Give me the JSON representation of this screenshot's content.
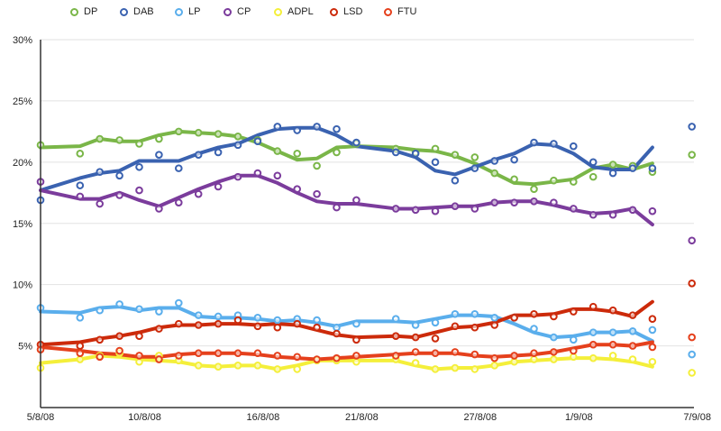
{
  "chart_data": {
    "type": "line",
    "title": "",
    "xlabel": "",
    "ylabel": "",
    "ylim": [
      0,
      30
    ],
    "y_ticks": [
      "5%",
      "10%",
      "15%",
      "20%",
      "25%",
      "30%"
    ],
    "y_tick_values": [
      5,
      10,
      15,
      20,
      25,
      30
    ],
    "x_ticks": [
      "5/8/08",
      "10/8/08",
      "16/8/08",
      "21/8/08",
      "27/8/08",
      "1/9/08",
      "7/9/08"
    ],
    "grid": true,
    "legend_position": "top",
    "marker_dates": [
      "5/8/08",
      "7/8/08",
      "8/8/08",
      "9/8/08",
      "10/8/08",
      "11/8/08",
      "12/8/08",
      "13/8/08",
      "14/8/08",
      "15/8/08",
      "16/8/08",
      "17/8/08",
      "18/8/08",
      "19/8/08",
      "20/8/08",
      "21/8/08",
      "23/8/08",
      "24/8/08",
      "25/8/08",
      "26/8/08",
      "27/8/08",
      "28/8/08",
      "29/8/08",
      "30/8/08",
      "31/8/08",
      "1/9/08",
      "2/9/08",
      "3/9/08",
      "4/9/08",
      "5/9/08",
      "7/9/08"
    ],
    "trend_dates": [
      "5/8/08",
      "7/8/08",
      "8/8/08",
      "9/8/08",
      "10/8/08",
      "11/8/08",
      "12/8/08",
      "13/8/08",
      "14/8/08",
      "15/8/08",
      "16/8/08",
      "17/8/08",
      "18/8/08",
      "19/8/08",
      "20/8/08",
      "21/8/08",
      "23/8/08",
      "24/8/08",
      "25/8/08",
      "26/8/08",
      "27/8/08",
      "28/8/08",
      "29/8/08",
      "30/8/08",
      "31/8/08",
      "1/9/08",
      "2/9/08",
      "3/9/08",
      "4/9/08",
      "5/9/08"
    ],
    "series": [
      {
        "name": "DP",
        "color": "#7ab648",
        "points": [
          21.4,
          20.7,
          21.9,
          21.8,
          21.5,
          21.9,
          22.5,
          22.4,
          22.3,
          22.1,
          21.8,
          20.9,
          20.7,
          19.7,
          20.8,
          21.5,
          21.1,
          20.8,
          21.1,
          20.6,
          20.4,
          19.1,
          18.6,
          17.8,
          18.5,
          18.4,
          18.8,
          19.8,
          19.7,
          19.2,
          20.6
        ],
        "trend": [
          21.2,
          21.3,
          21.9,
          21.7,
          21.7,
          22.2,
          22.5,
          22.4,
          22.3,
          22.1,
          21.6,
          20.9,
          20.2,
          20.3,
          21.2,
          21.3,
          21.2,
          21.0,
          20.9,
          20.5,
          19.9,
          19.1,
          18.3,
          18.2,
          18.4,
          18.6,
          19.5,
          19.8,
          19.4,
          19.9
        ]
      },
      {
        "name": "DAB",
        "color": "#3a62b0",
        "points": [
          16.9,
          18.1,
          19.2,
          18.9,
          19.6,
          20.6,
          19.5,
          20.6,
          20.8,
          21.4,
          21.7,
          22.9,
          22.6,
          22.9,
          22.7,
          21.6,
          20.8,
          20.7,
          20.0,
          18.5,
          19.5,
          20.1,
          20.2,
          21.6,
          21.5,
          21.3,
          20.0,
          19.1,
          19.5,
          19.5,
          22.9
        ],
        "trend": [
          17.7,
          18.7,
          19.1,
          19.3,
          20.1,
          20.1,
          20.1,
          20.7,
          21.2,
          21.5,
          22.2,
          22.7,
          22.8,
          22.8,
          22.2,
          21.3,
          20.9,
          20.4,
          19.3,
          19.0,
          19.6,
          20.2,
          20.7,
          21.5,
          21.4,
          20.7,
          19.6,
          19.4,
          19.4,
          21.2
        ]
      },
      {
        "name": "LP",
        "color": "#5aaeec",
        "points": [
          8.1,
          7.3,
          7.9,
          8.4,
          8.0,
          7.8,
          8.5,
          7.5,
          7.4,
          7.5,
          7.3,
          7.1,
          7.2,
          7.1,
          6.5,
          6.8,
          7.2,
          6.7,
          6.9,
          7.6,
          7.6,
          7.3,
          7.3,
          6.4,
          5.7,
          5.5,
          6.1,
          6.1,
          6.2,
          6.3,
          4.3
        ],
        "trend": [
          7.8,
          7.7,
          8.1,
          8.2,
          7.9,
          8.1,
          8.1,
          7.4,
          7.3,
          7.3,
          7.2,
          7.0,
          7.1,
          6.9,
          6.6,
          7.0,
          7.0,
          6.9,
          7.2,
          7.5,
          7.5,
          7.4,
          6.8,
          6.1,
          5.7,
          5.8,
          6.1,
          6.1,
          6.2,
          5.4
        ]
      },
      {
        "name": "CP",
        "color": "#7b3c9c",
        "points": [
          18.4,
          17.2,
          16.6,
          17.3,
          17.7,
          16.2,
          16.7,
          17.4,
          18.0,
          18.8,
          19.1,
          18.9,
          17.8,
          17.4,
          16.3,
          16.9,
          16.2,
          16.1,
          16.0,
          16.4,
          16.2,
          16.7,
          16.7,
          16.8,
          16.7,
          16.2,
          15.7,
          15.7,
          16.1,
          16.0,
          13.6
        ],
        "trend": [
          17.7,
          17.0,
          17.0,
          17.5,
          16.9,
          16.4,
          17.1,
          17.8,
          18.4,
          18.9,
          18.9,
          18.3,
          17.5,
          16.8,
          16.6,
          16.6,
          16.2,
          16.2,
          16.3,
          16.4,
          16.4,
          16.7,
          16.8,
          16.8,
          16.5,
          16.1,
          15.8,
          15.9,
          16.2,
          14.9
        ]
      },
      {
        "name": "ADPL",
        "color": "#f4ef3a",
        "points": [
          3.2,
          3.9,
          4.2,
          4.4,
          3.7,
          4.2,
          3.8,
          3.4,
          3.3,
          3.4,
          3.4,
          3.1,
          3.1,
          3.8,
          3.8,
          3.7,
          3.9,
          3.6,
          3.1,
          3.2,
          3.1,
          3.4,
          3.7,
          3.9,
          3.9,
          4.1,
          4.0,
          4.2,
          3.9,
          3.7,
          2.8
        ],
        "trend": [
          3.6,
          3.9,
          4.2,
          4.1,
          3.9,
          3.8,
          3.7,
          3.4,
          3.3,
          3.4,
          3.4,
          3.1,
          3.4,
          3.8,
          3.8,
          3.8,
          3.8,
          3.4,
          3.1,
          3.2,
          3.2,
          3.4,
          3.7,
          3.8,
          3.9,
          4.0,
          4.0,
          3.9,
          3.7,
          3.3
        ]
      },
      {
        "name": "LSD",
        "color": "#cc2a0a",
        "points": [
          5.1,
          5.0,
          5.5,
          5.8,
          5.8,
          6.4,
          6.8,
          6.7,
          6.8,
          7.1,
          6.6,
          6.5,
          6.8,
          6.5,
          6.0,
          5.5,
          5.8,
          5.7,
          5.6,
          6.6,
          6.5,
          6.7,
          7.3,
          7.6,
          7.4,
          7.8,
          8.2,
          7.9,
          7.5,
          7.2,
          10.1
        ],
        "trend": [
          5.1,
          5.3,
          5.6,
          5.8,
          6.1,
          6.5,
          6.7,
          6.7,
          6.8,
          6.8,
          6.7,
          6.8,
          6.7,
          6.3,
          5.9,
          5.7,
          5.8,
          5.7,
          6.1,
          6.5,
          6.6,
          6.9,
          7.5,
          7.5,
          7.6,
          8.0,
          8.0,
          7.8,
          7.4,
          8.6
        ]
      },
      {
        "name": "FTU",
        "color": "#e5401c",
        "points": [
          4.7,
          4.4,
          4.1,
          4.6,
          4.2,
          3.9,
          4.2,
          4.4,
          4.4,
          4.4,
          4.4,
          4.2,
          4.1,
          3.9,
          4.0,
          4.2,
          4.2,
          4.5,
          4.4,
          4.5,
          4.3,
          4.0,
          4.2,
          4.4,
          4.5,
          4.6,
          5.1,
          5.1,
          5.0,
          4.9,
          5.7
        ],
        "trend": [
          4.9,
          4.6,
          4.4,
          4.3,
          4.1,
          4.1,
          4.3,
          4.4,
          4.4,
          4.4,
          4.3,
          4.1,
          4.0,
          3.9,
          4.0,
          4.1,
          4.3,
          4.4,
          4.4,
          4.4,
          4.2,
          4.1,
          4.2,
          4.3,
          4.5,
          4.8,
          5.1,
          5.1,
          5.0,
          5.3
        ]
      }
    ]
  }
}
